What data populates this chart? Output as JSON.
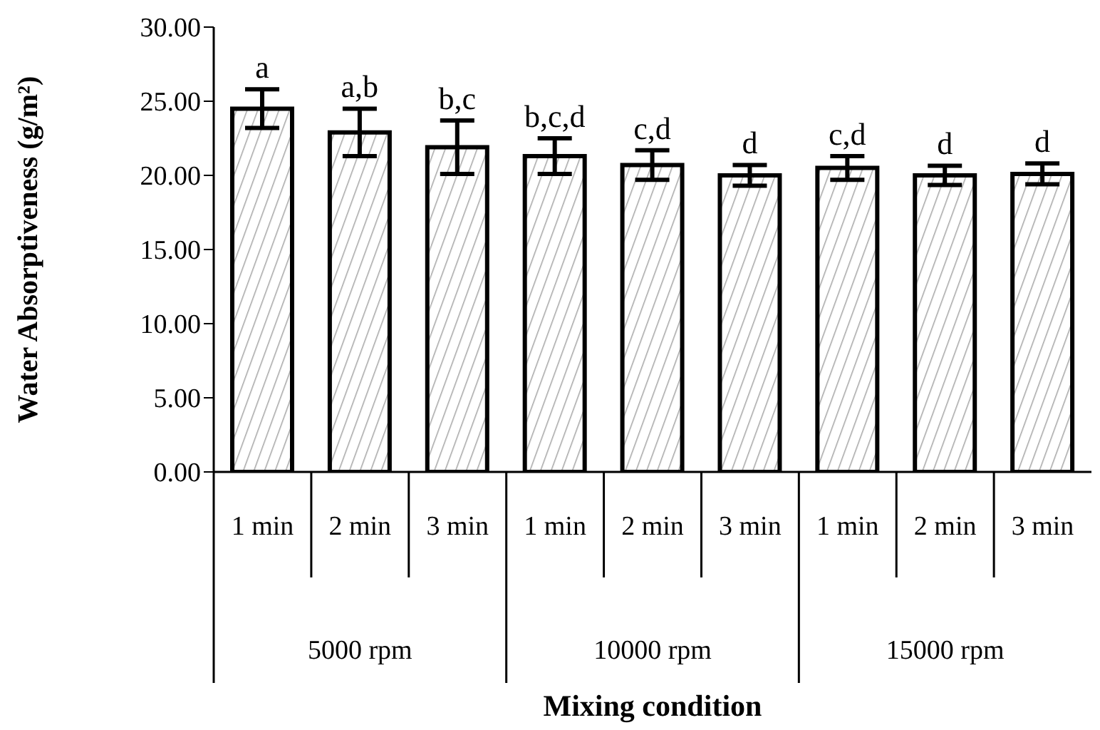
{
  "chart_data": {
    "type": "bar",
    "xlabel": "Mixing condition",
    "ylabel": "Water Absorptiveness (g/m²)",
    "categories": [
      "1 min",
      "2 min",
      "3 min",
      "1 min",
      "2 min",
      "3 min",
      "1 min",
      "2 min",
      "3 min"
    ],
    "values": [
      24.5,
      22.9,
      21.9,
      21.3,
      20.7,
      20.0,
      20.5,
      20.0,
      20.1
    ],
    "errors": [
      1.3,
      1.6,
      1.8,
      1.2,
      1.0,
      0.7,
      0.8,
      0.65,
      0.7
    ],
    "value_labels": [
      "a",
      "a,b",
      "b,c",
      "b,c,d",
      "c,d",
      "d",
      "c,d",
      "d",
      "d"
    ],
    "annotations": [
      "5000 rpm",
      "10000 rpm",
      "15000 rpm"
    ],
    "color": "#000000",
    "ylim": [
      0,
      30
    ],
    "yticks": [
      {
        "value": 0,
        "label": "0.00"
      },
      {
        "value": 5,
        "label": "5.00"
      },
      {
        "value": 10,
        "label": "10.00"
      },
      {
        "value": 15,
        "label": "15.00"
      },
      {
        "value": 20,
        "label": "20.00"
      },
      {
        "value": 25,
        "label": "25.00"
      },
      {
        "value": 30,
        "label": "30.00"
      }
    ],
    "grid": false,
    "legend": false
  }
}
